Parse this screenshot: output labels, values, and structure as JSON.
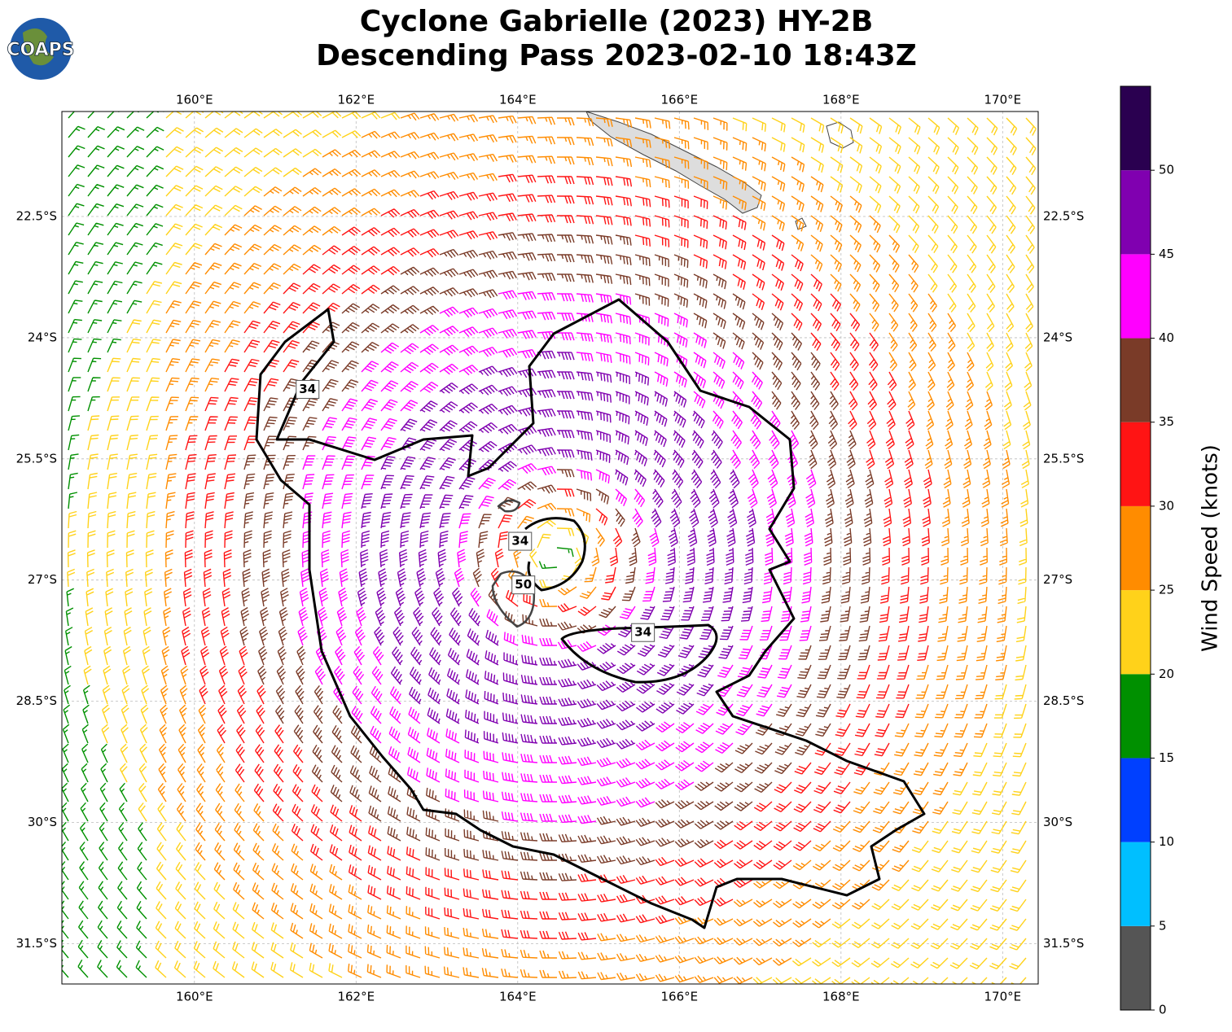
{
  "chart_data": {
    "type": "map",
    "title": "Cyclone Gabrielle (2023) HY-2B",
    "subtitle": "Descending Pass 2023-02-10 18:43Z",
    "logo": "COAPS",
    "xlim": [
      158.36,
      170.44
    ],
    "ylim": [
      -32.0,
      -21.2
    ],
    "xticks": [
      {
        "value": 160,
        "label": "160°E"
      },
      {
        "value": 162,
        "label": "162°E"
      },
      {
        "value": 164,
        "label": "164°E"
      },
      {
        "value": 166,
        "label": "166°E"
      },
      {
        "value": 168,
        "label": "168°E"
      },
      {
        "value": 170,
        "label": "170°E"
      }
    ],
    "yticks": [
      {
        "value": -22.5,
        "label": "22.5°S"
      },
      {
        "value": -24,
        "label": "24°S"
      },
      {
        "value": -25.5,
        "label": "25.5°S"
      },
      {
        "value": -27,
        "label": "27°S"
      },
      {
        "value": -28.5,
        "label": "28.5°S"
      },
      {
        "value": -30,
        "label": "30°S"
      },
      {
        "value": -31.5,
        "label": "31.5°S"
      }
    ],
    "grid": true,
    "contour_labels": [
      {
        "text": "34",
        "lon": 161.4,
        "lat": -24.64
      },
      {
        "text": "34",
        "lon": 164.03,
        "lat": -26.52
      },
      {
        "text": "50",
        "lon": 164.07,
        "lat": -27.06
      },
      {
        "text": "34",
        "lon": 165.55,
        "lat": -27.65
      }
    ],
    "colorbar": {
      "label": "Wind Speed (knots)",
      "bounds": [
        0,
        5,
        10,
        15,
        20,
        25,
        30,
        35,
        40,
        45,
        50,
        55
      ],
      "colors": [
        "#555555",
        "#00bfff",
        "#0040ff",
        "#009000",
        "#ffd21a",
        "#ff8c00",
        "#ff1414",
        "#7a3b28",
        "#ff00ff",
        "#8000b0",
        "#2a0050"
      ],
      "ticks": [
        0,
        5,
        10,
        15,
        20,
        25,
        30,
        35,
        40,
        45,
        50
      ]
    }
  }
}
